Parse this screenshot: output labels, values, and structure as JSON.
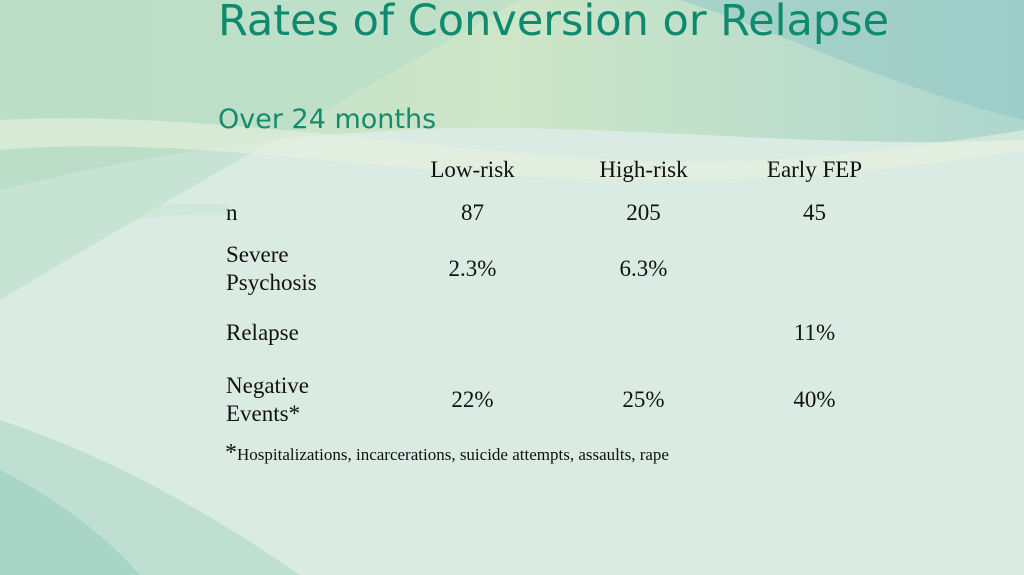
{
  "slide": {
    "title": "Rates of Conversion or Relapse",
    "subtitle": "Over 24 months"
  },
  "table": {
    "columns": [
      "Low-risk",
      "High-risk",
      "Early FEP"
    ],
    "rows": [
      {
        "label": "n",
        "values": [
          "87",
          "205",
          "45"
        ]
      },
      {
        "label_lines": [
          "Severe",
          "Psychosis"
        ],
        "values": [
          "2.3%",
          "6.3%",
          ""
        ]
      },
      {
        "label": "Relapse",
        "values": [
          "",
          "",
          "11%"
        ]
      },
      {
        "label_lines": [
          "Negative",
          "Events*"
        ],
        "values": [
          "22%",
          "25%",
          "40%"
        ]
      }
    ]
  },
  "footnote": {
    "marker": "*",
    "text": "Hospitalizations, incarcerations, suicide attempts, assaults, rape"
  },
  "colors": {
    "title": "#0e8a6e",
    "background": "#d9ebe2"
  }
}
